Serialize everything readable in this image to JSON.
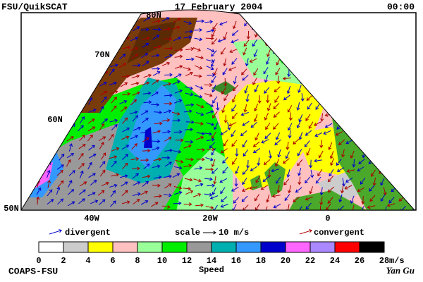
{
  "header": {
    "left": "FSU/QuikSCAT",
    "date": "17 February 2004",
    "time": "00:00"
  },
  "map": {
    "lat_labels": [
      "80N",
      "70N",
      "60N",
      "50N"
    ],
    "lon_labels": [
      "40W",
      "20W",
      "0"
    ]
  },
  "legend": {
    "divergent": "divergent",
    "scale": "scale",
    "scale_value": "10 m/s",
    "convergent": "convergent",
    "divergent_color": "#0000cc",
    "convergent_color": "#aa0000"
  },
  "colorbar": {
    "ticks": [
      0,
      2,
      4,
      6,
      8,
      10,
      12,
      14,
      16,
      18,
      20,
      22,
      24,
      26,
      28
    ],
    "unit": "m/s",
    "label": "Speed",
    "colors": [
      "#ffffff",
      "#cccccc",
      "#ffff00",
      "#ffc0c0",
      "#99ff99",
      "#00ee00",
      "#999999",
      "#00b0b0",
      "#3399ff",
      "#0000cc",
      "#ff66ff",
      "#aa88ff",
      "#ff0000",
      "#cc4400",
      "#000000"
    ]
  },
  "footer": {
    "left": "COAPS-FSU",
    "right": "Yan Gu"
  }
}
